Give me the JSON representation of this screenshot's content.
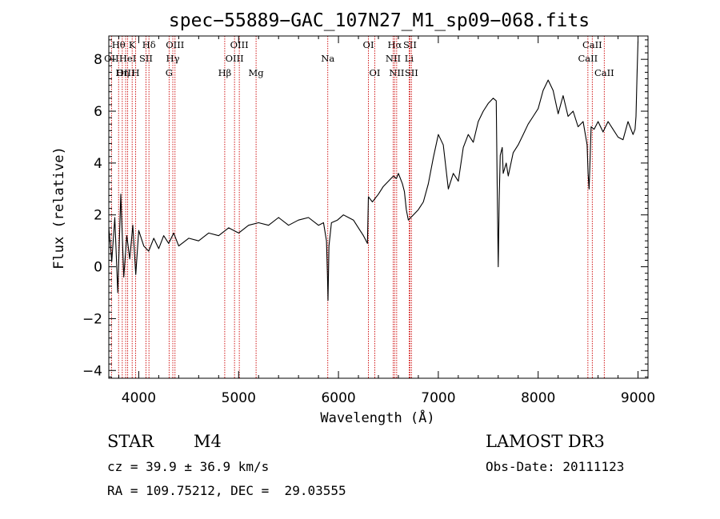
{
  "chart_data": {
    "type": "line",
    "title": "spec−55889−GAC_107N27_M1_sp09−068.fits",
    "xlabel": "Wavelength (Å)",
    "ylabel": "Flux (relative)",
    "xlim": [
      3700,
      9100
    ],
    "ylim": [
      -4.3,
      8.9
    ],
    "x_ticks": [
      4000,
      5000,
      6000,
      7000,
      8000,
      9000
    ],
    "x_tick_labels": [
      "4000",
      "5000",
      "6000",
      "7000",
      "8000",
      "9000"
    ],
    "y_ticks": [
      -4,
      -2,
      0,
      2,
      4,
      6,
      8
    ],
    "y_tick_labels": [
      "−4",
      "−2",
      "0",
      "2",
      "4",
      "6",
      "8"
    ],
    "grid": false,
    "series": [
      {
        "color": "#000000",
        "x": [
          3700,
          3730,
          3760,
          3790,
          3820,
          3850,
          3880,
          3910,
          3940,
          3970,
          4000,
          4050,
          4100,
          4150,
          4200,
          4250,
          4300,
          4350,
          4400,
          4500,
          4600,
          4700,
          4800,
          4900,
          5000,
          5100,
          5200,
          5300,
          5400,
          5500,
          5600,
          5700,
          5800,
          5850,
          5880,
          5890,
          5895,
          5905,
          5930,
          5990,
          6050,
          6100,
          6150,
          6200,
          6250,
          6290,
          6300,
          6320,
          6340,
          6400,
          6450,
          6500,
          6550,
          6580,
          6600,
          6620,
          6640,
          6660,
          6680,
          6700,
          6750,
          6800,
          6850,
          6900,
          6950,
          7000,
          7050,
          7100,
          7150,
          7200,
          7250,
          7300,
          7350,
          7400,
          7450,
          7500,
          7550,
          7580,
          7590,
          7600,
          7610,
          7620,
          7640,
          7650,
          7680,
          7700,
          7750,
          7800,
          7850,
          7900,
          7950,
          8000,
          8050,
          8100,
          8150,
          8200,
          8250,
          8300,
          8350,
          8400,
          8450,
          8490,
          8500,
          8510,
          8530,
          8560,
          8600,
          8650,
          8700,
          8750,
          8800,
          8850,
          8900,
          8950,
          8970,
          8980,
          8990,
          9000
        ],
        "y": [
          1.5,
          0.2,
          1.9,
          -1.0,
          2.8,
          -0.4,
          1.2,
          0.3,
          1.6,
          -0.3,
          1.4,
          0.8,
          0.6,
          1.1,
          0.7,
          1.2,
          0.9,
          1.3,
          0.8,
          1.1,
          1.0,
          1.3,
          1.2,
          1.5,
          1.3,
          1.6,
          1.7,
          1.6,
          1.9,
          1.6,
          1.8,
          1.9,
          1.6,
          1.7,
          1.0,
          -0.3,
          -1.3,
          0.8,
          1.7,
          1.8,
          2.0,
          1.9,
          1.8,
          1.5,
          1.2,
          0.9,
          2.7,
          2.6,
          2.5,
          2.8,
          3.1,
          3.3,
          3.5,
          3.4,
          3.6,
          3.4,
          3.2,
          2.9,
          2.2,
          1.8,
          2.0,
          2.2,
          2.5,
          3.2,
          4.2,
          5.1,
          4.7,
          3.0,
          3.6,
          3.3,
          4.6,
          5.1,
          4.8,
          5.6,
          6.0,
          6.3,
          6.5,
          6.4,
          3.1,
          0.0,
          2.6,
          4.3,
          4.6,
          3.6,
          4.0,
          3.5,
          4.4,
          4.7,
          5.1,
          5.5,
          5.8,
          6.1,
          6.8,
          7.2,
          6.8,
          5.9,
          6.6,
          5.8,
          6.0,
          5.4,
          5.6,
          4.7,
          3.6,
          3.0,
          5.4,
          5.3,
          5.6,
          5.2,
          5.6,
          5.3,
          5.0,
          4.9,
          5.6,
          5.1,
          5.3,
          5.8,
          7.4,
          8.7
        ]
      }
    ],
    "spectral_lines": [
      {
        "label": "Hθ",
        "x": 3798,
        "row": 0
      },
      {
        "label": "OII",
        "x": 3727,
        "row": 1
      },
      {
        "label": "OIII",
        "x": 3869,
        "row": 2
      },
      {
        "label": "Hη",
        "x": 3835,
        "row": 2
      },
      {
        "label": "K",
        "x": 3934,
        "row": 0
      },
      {
        "label": "HeI",
        "x": 3889,
        "row": 1
      },
      {
        "label": "H",
        "x": 3969,
        "row": 2
      },
      {
        "label": "SII",
        "x": 4072,
        "row": 1
      },
      {
        "label": "Hδ",
        "x": 4102,
        "row": 0
      },
      {
        "label": "OIII",
        "x": 4363,
        "row": 0
      },
      {
        "label": "Hγ",
        "x": 4341,
        "row": 1
      },
      {
        "label": "G",
        "x": 4304,
        "row": 2
      },
      {
        "label": "Hβ",
        "x": 4861,
        "row": 2
      },
      {
        "label": "OIII",
        "x": 5007,
        "row": 0
      },
      {
        "label": "OIII",
        "x": 4959,
        "row": 1
      },
      {
        "label": "Mg",
        "x": 5175,
        "row": 2
      },
      {
        "label": "Na",
        "x": 5893,
        "row": 1
      },
      {
        "label": "OI",
        "x": 6300,
        "row": 0
      },
      {
        "label": "OI",
        "x": 6364,
        "row": 2
      },
      {
        "label": "Hα",
        "x": 6563,
        "row": 0
      },
      {
        "label": "SII",
        "x": 6716,
        "row": 0
      },
      {
        "label": "NII",
        "x": 6548,
        "row": 1
      },
      {
        "label": "Li",
        "x": 6708,
        "row": 1
      },
      {
        "label": "NII",
        "x": 6583,
        "row": 2
      },
      {
        "label": "SII",
        "x": 6731,
        "row": 2
      },
      {
        "label": "CaII",
        "x": 8542,
        "row": 0
      },
      {
        "label": "CaII",
        "x": 8498,
        "row": 1
      },
      {
        "label": "CaII",
        "x": 8662,
        "row": 2
      }
    ]
  },
  "info": {
    "class_text": "STAR",
    "subclass_text": "M4",
    "survey": "LAMOST DR3",
    "cz": "cz = 39.9 ± 36.9 km/s",
    "obs_date": "Obs-Date: 20111123",
    "coords": "RA = 109.75212, DEC =  29.03555"
  },
  "colors": {
    "spectrum": "#000000",
    "line_markers": "#cc0000",
    "background": "#ffffff"
  }
}
